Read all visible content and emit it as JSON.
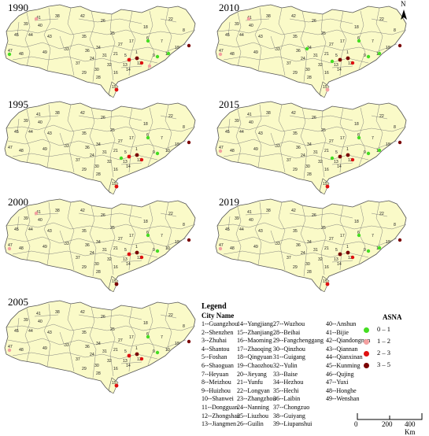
{
  "panels": [
    {
      "year": "1990"
    },
    {
      "year": "2010"
    },
    {
      "year": "1995"
    },
    {
      "year": "2015"
    },
    {
      "year": "2000"
    },
    {
      "year": "2019"
    },
    {
      "year": "2005"
    }
  ],
  "north_label": "N",
  "legend": {
    "title": "Legend",
    "city_name_title": "City Name",
    "columns": [
      [
        "1--Guangzhou",
        "2--Shenzhen",
        "3--Zhuhai",
        "4--Shantou",
        "5--Foshan",
        "6--Shaoguan",
        "7--Heyuan",
        "8--Meizhou",
        "9--Huizhou",
        "10--Shanwei",
        "11--Dongguan",
        "12--Zhongshan",
        "13--Jiangmen"
      ],
      [
        "14--Yangjiang",
        "15--Zhanjiang",
        "16--Maoming",
        "17--Zhaoqing",
        "18--Qingyuan",
        "19--Chaozhou",
        "20--Jieyang",
        "21--Yunfu",
        "22--Longyan",
        "23--Zhangzhou",
        "24--Nanning",
        "25--Liuzhou",
        "26--Guilin"
      ],
      [
        "27--Wuzhou",
        "28--Beihai",
        "29--Fangchenggang",
        "30--Qinzhou",
        "31--Guigang",
        "32--Yulin",
        "33--Baise",
        "34--Hezhou",
        "35--Hechi",
        "36--Laibin",
        "37--Chongzuo",
        "38--Guiyang",
        "39--Liupanshui"
      ],
      [
        "40--Anshun",
        "41--Bijie",
        "42--Qiandongnan",
        "43--Qiannan",
        "44--Qianxinan",
        "45--Kunming",
        "46--Qujing",
        "47--Yuxi",
        "48--Honghe",
        "49--Wenshan"
      ]
    ]
  },
  "asna": {
    "title": "ASNA",
    "classes": [
      {
        "label": "0 – 1",
        "color": "#44dd22"
      },
      {
        "label": "1 – 2",
        "color": "#f4a0a0"
      },
      {
        "label": "2 – 3",
        "color": "#e01010"
      },
      {
        "label": "3 – 5",
        "color": "#7a0000"
      }
    ]
  },
  "scale_bar": {
    "labels": [
      "0",
      "200",
      "400 Km"
    ]
  },
  "map_colors": {
    "fill": "#fafac8",
    "stroke": "#555555"
  }
}
